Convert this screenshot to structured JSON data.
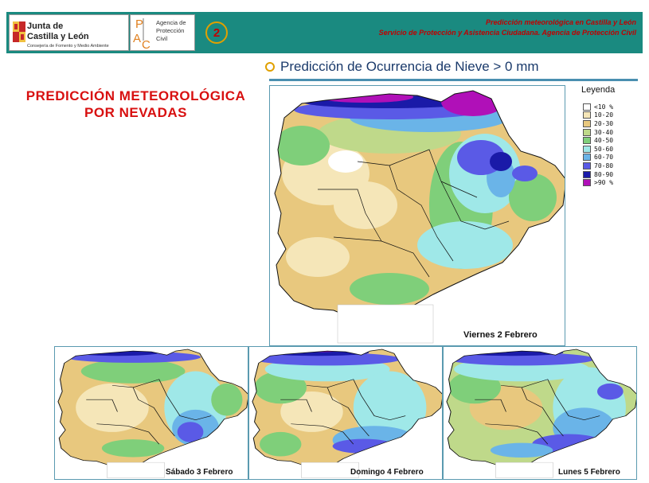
{
  "header": {
    "logo_line1": "Junta de",
    "logo_line2": "Castilla y León",
    "logo_sub": "Consejería de Fomento y Medio Ambiente",
    "apc_lines": [
      "Agencia de",
      "Protección",
      "Civil"
    ],
    "badge": "2",
    "title_line1": "Predicción meteorológica en Castilla y León",
    "title_line2": "Servicio de Protección y Asistencia Ciudadana. Agencia de Protección Civil"
  },
  "prediction_title": "Predicción de Ocurrencia de Nieve > 0 mm",
  "side_title": [
    "PREDICCIÓN METEOROLÓGICA",
    "POR NEVADAS"
  ],
  "legend": {
    "title": "Leyenda",
    "items": [
      {
        "label": "<10  %",
        "color": "#ffffff"
      },
      {
        "label": "10-20",
        "color": "#f5e6b8"
      },
      {
        "label": "20-30",
        "color": "#e8c87e"
      },
      {
        "label": "30-40",
        "color": "#bfd98a"
      },
      {
        "label": "40-50",
        "color": "#7fcf7a"
      },
      {
        "label": "50-60",
        "color": "#9fe8e8"
      },
      {
        "label": "60-70",
        "color": "#6ab4e8"
      },
      {
        "label": "70-80",
        "color": "#5a5ae6"
      },
      {
        "label": "80-90",
        "color": "#1a1aa8"
      },
      {
        "label": ">90  %",
        "color": "#b010b8"
      }
    ]
  },
  "maps": [
    {
      "caption": "Viernes 2 Febrero"
    },
    {
      "caption": "Sábado 3 Febrero"
    },
    {
      "caption": "Domingo 4 Febrero"
    },
    {
      "caption": "Lunes 5 Febrero"
    }
  ]
}
